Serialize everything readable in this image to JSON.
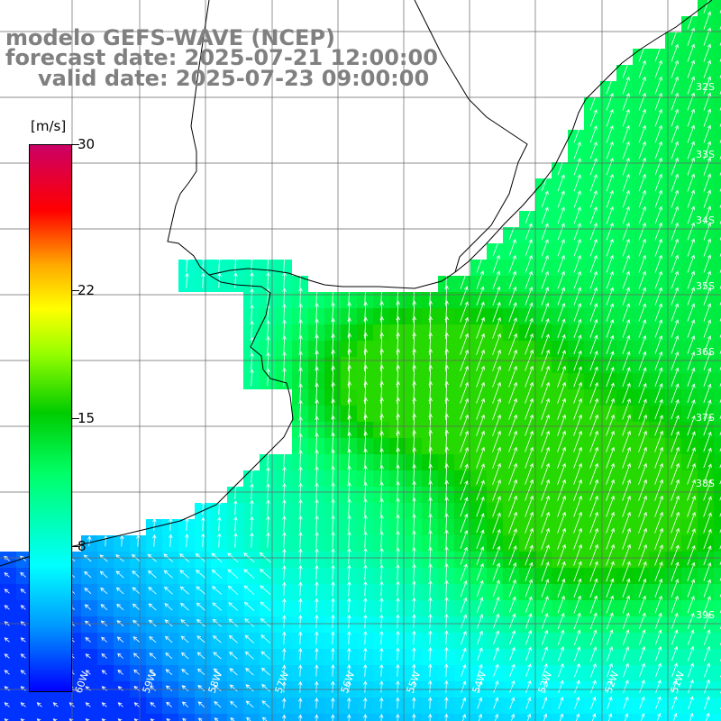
{
  "title": {
    "line1": "modelo GEFS-WAVE (NCEP)",
    "line2": "forecast date: 2025-07-21 12:00:00",
    "line3": "valid date: 2025-07-23 09:00:00"
  },
  "colorbar": {
    "unit": "[m/s]",
    "ticks": [
      "30",
      "22",
      "15",
      "8"
    ],
    "tick_values": [
      30,
      22,
      15,
      8
    ],
    "min": 0,
    "max": 30,
    "colors": [
      "#0000ff",
      "#0099ff",
      "#00ffff",
      "#00ff66",
      "#00cc00",
      "#99ff00",
      "#ffff00",
      "#ffaa00",
      "#ff0000",
      "#cc0066"
    ]
  },
  "map": {
    "longitude_labels": [
      "60W",
      "59W",
      "58W",
      "57W",
      "56W",
      "55W",
      "54W",
      "53W",
      "52W",
      "51W"
    ],
    "latitude_labels": [
      "32S",
      "33S",
      "34S",
      "35S",
      "36S",
      "37S",
      "38S",
      "39S"
    ],
    "grid": true,
    "field": "wind speed",
    "arrow_color": "#ffffff",
    "coast_color": "#000000"
  }
}
